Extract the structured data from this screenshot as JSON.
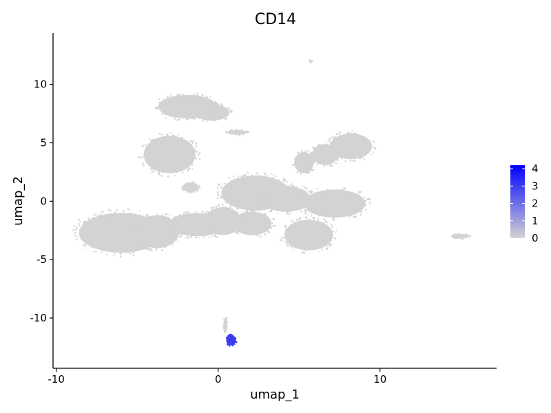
{
  "chart_data": {
    "type": "scatter",
    "title": "CD14",
    "xlabel": "umap_1",
    "ylabel": "umap_2",
    "xlim": [
      -10.2,
      17.2
    ],
    "ylim": [
      -14.3,
      14.4
    ],
    "x_ticks": [
      -10,
      0,
      10
    ],
    "y_ticks": [
      -10,
      -5,
      0,
      5,
      10
    ],
    "grid": false,
    "legend_position": "right",
    "color_scale": {
      "low_color": "#d3d3d3",
      "high_color": "#0000ff",
      "ticks": [
        0,
        1,
        2,
        3,
        4
      ],
      "min": 0,
      "max": 4.2
    },
    "clusters": [
      {
        "cx": -1.9,
        "cy": 8.1,
        "rx": 1.8,
        "ry": 1.0,
        "value": 0
      },
      {
        "cx": -0.4,
        "cy": 7.6,
        "rx": 1.1,
        "ry": 0.7,
        "value": 0
      },
      {
        "cx": -3.0,
        "cy": 4.0,
        "rx": 1.6,
        "ry": 1.6,
        "value": 0
      },
      {
        "cx": -6.0,
        "cy": -2.7,
        "rx": 2.6,
        "ry": 1.7,
        "value": 0
      },
      {
        "cx": -3.8,
        "cy": -2.6,
        "rx": 1.4,
        "ry": 1.4,
        "value": 0
      },
      {
        "cx": -1.3,
        "cy": -2.0,
        "rx": 1.7,
        "ry": 1.0,
        "value": 0
      },
      {
        "cx": 0.3,
        "cy": -1.7,
        "rx": 1.1,
        "ry": 1.2,
        "value": 0
      },
      {
        "cx": 2.3,
        "cy": 0.7,
        "rx": 2.1,
        "ry": 1.5,
        "value": 0
      },
      {
        "cx": 2.1,
        "cy": -1.9,
        "rx": 1.2,
        "ry": 1.0,
        "value": 0
      },
      {
        "cx": 4.2,
        "cy": 0.2,
        "rx": 1.5,
        "ry": 1.1,
        "value": 0
      },
      {
        "cx": 5.6,
        "cy": -2.9,
        "rx": 1.5,
        "ry": 1.3,
        "value": 0
      },
      {
        "cx": 7.2,
        "cy": -0.2,
        "rx": 1.9,
        "ry": 1.2,
        "value": 0
      },
      {
        "cx": 8.2,
        "cy": 4.7,
        "rx": 1.3,
        "ry": 1.1,
        "value": 0
      },
      {
        "cx": 6.6,
        "cy": 4.0,
        "rx": 0.8,
        "ry": 0.9,
        "value": 0
      },
      {
        "cx": 5.3,
        "cy": 3.3,
        "rx": 0.6,
        "ry": 0.9,
        "value": 0
      },
      {
        "cx": 1.2,
        "cy": 5.9,
        "rx": 0.6,
        "ry": 0.2,
        "value": 0
      },
      {
        "cx": -1.7,
        "cy": 1.2,
        "rx": 0.5,
        "ry": 0.4,
        "value": 0
      },
      {
        "cx": 5.7,
        "cy": 12.0,
        "rx": 0.1,
        "ry": 0.08,
        "value": 0
      },
      {
        "cx": 15.0,
        "cy": -3.0,
        "rx": 0.5,
        "ry": 0.2,
        "value": 0
      },
      {
        "cx": 0.45,
        "cy": -10.6,
        "rx": 0.12,
        "ry": 0.6,
        "value": 0
      },
      {
        "cx": 0.8,
        "cy": -11.9,
        "rx": 0.3,
        "ry": 0.45,
        "value": 3.0
      }
    ]
  }
}
